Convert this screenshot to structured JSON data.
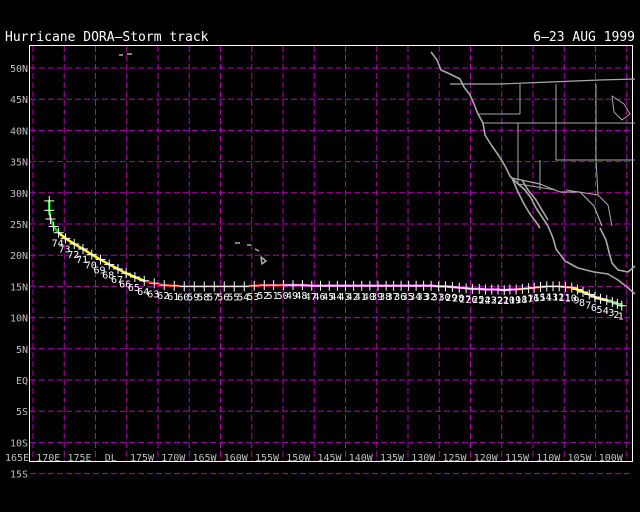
{
  "title": "Hurricane DORA–Storm track",
  "date_range": "6–23 AUG 1999",
  "colors": {
    "background": "#000000",
    "grid": "#b300b3",
    "land": "#a9a9a9",
    "tropical_depression": "#00cc00",
    "tropical_storm": "#ffff33",
    "hurricane_cat1": "#ff0000",
    "hurricane_cat2": "#ff55ff",
    "track_markers": "#ffffff"
  },
  "map": {
    "lat_labels": [
      "50N",
      "45N",
      "40N",
      "35N",
      "30N",
      "25N",
      "20N",
      "15N",
      "10N",
      "5N",
      "EQ",
      "5S",
      "10S",
      "15S"
    ],
    "lon_labels": [
      "165E",
      "170E",
      "175E",
      "DL",
      "175W",
      "170W",
      "165W",
      "160W",
      "155W",
      "150W",
      "145W",
      "140W",
      "135W",
      "130W",
      "125W",
      "120W",
      "115W",
      "110W",
      "105W",
      "100W"
    ]
  },
  "track": {
    "advisory_labels": [
      "1",
      "2",
      "3",
      "4",
      "5",
      "6",
      "7",
      "8",
      "9",
      "10",
      "11",
      "12",
      "13",
      "14",
      "15",
      "16",
      "17",
      "18",
      "19",
      "20",
      "21",
      "22",
      "23",
      "24",
      "25",
      "26",
      "27",
      "28",
      "29",
      "30",
      "31",
      "32",
      "33",
      "34",
      "35",
      "36",
      "37",
      "38",
      "39",
      "40",
      "41",
      "42",
      "43",
      "44",
      "45",
      "46",
      "47",
      "48",
      "49",
      "50",
      "51",
      "52",
      "53",
      "54",
      "55",
      "56",
      "57",
      "58",
      "59",
      "60",
      "61",
      "62",
      "63",
      "64",
      "65",
      "66",
      "67",
      "68",
      "69",
      "70",
      "71",
      "72",
      "73",
      "74"
    ],
    "positions": [
      {
        "lon": -100.8,
        "lat": 11.9,
        "intensity": "TD"
      },
      {
        "lon": -101.5,
        "lat": 12.2,
        "intensity": "TD"
      },
      {
        "lon": -102.3,
        "lat": 12.5,
        "intensity": "TD"
      },
      {
        "lon": -103.2,
        "lat": 12.8,
        "intensity": "TD"
      },
      {
        "lon": -104.2,
        "lat": 13.0,
        "intensity": "TS"
      },
      {
        "lon": -105.1,
        "lat": 13.3,
        "intensity": "TS"
      },
      {
        "lon": -106.0,
        "lat": 13.7,
        "intensity": "TS"
      },
      {
        "lon": -107.0,
        "lat": 14.1,
        "intensity": "TS"
      },
      {
        "lon": -107.9,
        "lat": 14.5,
        "intensity": "TS"
      },
      {
        "lon": -108.8,
        "lat": 14.8,
        "intensity": "TS"
      },
      {
        "lon": -109.8,
        "lat": 14.9,
        "intensity": "H1"
      },
      {
        "lon": -110.8,
        "lat": 15.0,
        "intensity": "H1"
      },
      {
        "lon": -111.8,
        "lat": 15.0,
        "intensity": "H1"
      },
      {
        "lon": -112.8,
        "lat": 15.0,
        "intensity": "H1"
      },
      {
        "lon": -113.8,
        "lat": 14.9,
        "intensity": "H1"
      },
      {
        "lon": -114.8,
        "lat": 14.8,
        "intensity": "H1"
      },
      {
        "lon": -115.7,
        "lat": 14.7,
        "intensity": "H1"
      },
      {
        "lon": -116.7,
        "lat": 14.6,
        "intensity": "H1"
      },
      {
        "lon": -117.7,
        "lat": 14.5,
        "intensity": "H1"
      },
      {
        "lon": -118.7,
        "lat": 14.5,
        "intensity": "H2"
      },
      {
        "lon": -119.6,
        "lat": 14.4,
        "intensity": "H2"
      },
      {
        "lon": -120.6,
        "lat": 14.5,
        "intensity": "H2"
      },
      {
        "lon": -121.6,
        "lat": 14.5,
        "intensity": "H2"
      },
      {
        "lon": -122.6,
        "lat": 14.5,
        "intensity": "H2"
      },
      {
        "lon": -123.6,
        "lat": 14.6,
        "intensity": "H2"
      },
      {
        "lon": -124.7,
        "lat": 14.6,
        "intensity": "H2"
      },
      {
        "lon": -125.7,
        "lat": 14.7,
        "intensity": "H2"
      },
      {
        "lon": -126.8,
        "lat": 14.8,
        "intensity": "H2"
      },
      {
        "lon": -127.9,
        "lat": 14.9,
        "intensity": "H2"
      },
      {
        "lon": -129.0,
        "lat": 15.0,
        "intensity": "H2"
      },
      {
        "lon": -130.1,
        "lat": 15.0,
        "intensity": "H2"
      },
      {
        "lon": -131.3,
        "lat": 15.1,
        "intensity": "H2"
      },
      {
        "lon": -132.5,
        "lat": 15.1,
        "intensity": "H2"
      },
      {
        "lon": -133.7,
        "lat": 15.1,
        "intensity": "H2"
      },
      {
        "lon": -134.9,
        "lat": 15.1,
        "intensity": "H2"
      },
      {
        "lon": -136.1,
        "lat": 15.1,
        "intensity": "H2"
      },
      {
        "lon": -137.3,
        "lat": 15.1,
        "intensity": "H2"
      },
      {
        "lon": -138.5,
        "lat": 15.1,
        "intensity": "H2"
      },
      {
        "lon": -139.8,
        "lat": 15.1,
        "intensity": "H2"
      },
      {
        "lon": -141.1,
        "lat": 15.1,
        "intensity": "H2"
      },
      {
        "lon": -142.4,
        "lat": 15.1,
        "intensity": "H2"
      },
      {
        "lon": -143.7,
        "lat": 15.1,
        "intensity": "H2"
      },
      {
        "lon": -145.0,
        "lat": 15.1,
        "intensity": "H2"
      },
      {
        "lon": -146.3,
        "lat": 15.1,
        "intensity": "H2"
      },
      {
        "lon": -147.6,
        "lat": 15.1,
        "intensity": "H2"
      },
      {
        "lon": -149.0,
        "lat": 15.1,
        "intensity": "H2"
      },
      {
        "lon": -150.4,
        "lat": 15.1,
        "intensity": "H2"
      },
      {
        "lon": -151.9,
        "lat": 15.2,
        "intensity": "H2"
      },
      {
        "lon": -153.4,
        "lat": 15.2,
        "intensity": "H2"
      },
      {
        "lon": -154.9,
        "lat": 15.2,
        "intensity": "H2"
      },
      {
        "lon": -156.5,
        "lat": 15.2,
        "intensity": "H1"
      },
      {
        "lon": -158.0,
        "lat": 15.2,
        "intensity": "H1"
      },
      {
        "lon": -159.6,
        "lat": 15.1,
        "intensity": "H1"
      },
      {
        "lon": -161.2,
        "lat": 15.0,
        "intensity": "H1"
      },
      {
        "lon": -162.8,
        "lat": 15.0,
        "intensity": "H1"
      },
      {
        "lon": -164.4,
        "lat": 15.0,
        "intensity": "H1"
      },
      {
        "lon": -166.0,
        "lat": 15.0,
        "intensity": "H1"
      },
      {
        "lon": -167.6,
        "lat": 15.0,
        "intensity": "H1"
      },
      {
        "lon": -169.2,
        "lat": 15.0,
        "intensity": "H1"
      },
      {
        "lon": -170.8,
        "lat": 15.0,
        "intensity": "H1"
      },
      {
        "lon": -172.4,
        "lat": 15.1,
        "intensity": "H1"
      },
      {
        "lon": -174.0,
        "lat": 15.2,
        "intensity": "H1"
      },
      {
        "lon": -175.6,
        "lat": 15.5,
        "intensity": "H1"
      },
      {
        "lon": -177.2,
        "lat": 15.9,
        "intensity": "H1"
      },
      {
        "lon": -178.7,
        "lat": 16.5,
        "intensity": "TS"
      },
      {
        "lon": 179.9,
        "lat": 17.1,
        "intensity": "TS"
      },
      {
        "lon": 178.6,
        "lat": 17.8,
        "intensity": "TS"
      },
      {
        "lon": 177.2,
        "lat": 18.5,
        "intensity": "TS"
      },
      {
        "lon": 175.8,
        "lat": 19.3,
        "intensity": "TS"
      },
      {
        "lon": 174.4,
        "lat": 20.1,
        "intensity": "TS"
      },
      {
        "lon": 173.0,
        "lat": 21.0,
        "intensity": "TS"
      },
      {
        "lon": 171.6,
        "lat": 21.8,
        "intensity": "TS"
      },
      {
        "lon": 170.2,
        "lat": 22.7,
        "intensity": "TS"
      },
      {
        "lon": 169.1,
        "lat": 23.6,
        "intensity": "TS"
      },
      {
        "lon": 168.3,
        "lat": 24.6,
        "intensity": "TD"
      },
      {
        "lon": 167.8,
        "lat": 25.8,
        "intensity": "TD"
      },
      {
        "lon": 167.6,
        "lat": 27.2,
        "intensity": "TD"
      },
      {
        "lon": 167.6,
        "lat": 28.7,
        "intensity": "TD"
      }
    ]
  }
}
